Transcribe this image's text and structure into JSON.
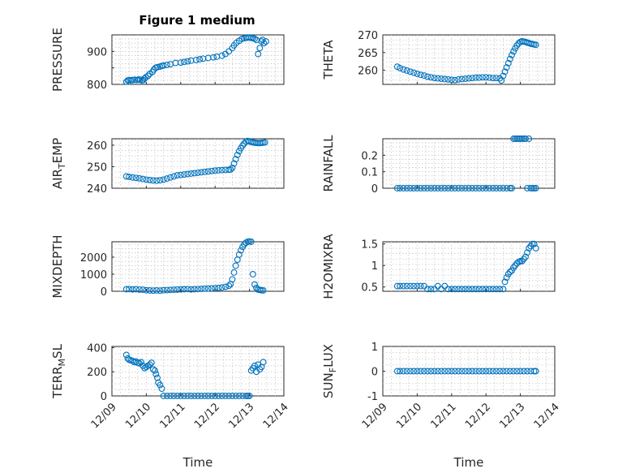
{
  "figure": {
    "title": "Figure 1 medium"
  },
  "chart_data": [
    {
      "type": "scatter",
      "ylabel": "PRESSURE",
      "xlabel": "",
      "ylim": [
        800,
        950
      ],
      "yticks": [
        800,
        850,
        900
      ],
      "ytick_labels": [
        "800",
        "",
        "900"
      ],
      "xlim": [
        0,
        5
      ],
      "xtick_labels": [
        "",
        "",
        "",
        "",
        "",
        ""
      ],
      "grid": true,
      "series": [
        {
          "x": [
            0.42,
            0.46,
            0.5,
            0.55,
            0.6,
            0.66,
            0.73,
            0.78,
            0.82,
            0.87,
            0.91,
            0.95,
            0.99,
            1.05,
            1.1,
            1.18,
            1.22,
            1.27,
            1.32,
            1.4,
            1.45,
            1.5,
            1.6,
            1.7,
            1.85,
            2.0,
            2.1,
            2.2,
            2.3,
            2.45,
            2.55,
            2.65,
            2.8,
            2.95,
            3.05,
            3.2,
            3.3,
            3.4,
            3.5,
            3.55,
            3.62,
            3.7,
            3.78,
            3.85,
            3.9,
            3.95,
            4.0,
            4.05,
            4.1,
            4.15,
            4.2,
            4.25,
            4.3,
            4.35,
            4.38,
            4.42,
            4.48
          ],
          "y": [
            808,
            812,
            813,
            812,
            813,
            814,
            813,
            815,
            814,
            812,
            813,
            818,
            822,
            826,
            832,
            838,
            845,
            850,
            852,
            854,
            856,
            857,
            859,
            861,
            865,
            866,
            868,
            870,
            872,
            874,
            876,
            878,
            880,
            882,
            884,
            887,
            892,
            900,
            910,
            918,
            926,
            932,
            938,
            940,
            941,
            942,
            942,
            941,
            940,
            938,
            935,
            892,
            910,
            930,
            935,
            925,
            930
          ]
        }
      ]
    },
    {
      "type": "scatter",
      "ylabel": "THETA",
      "xlabel": "",
      "ylim": [
        256,
        270
      ],
      "yticks": [
        260,
        265,
        270
      ],
      "ytick_labels": [
        "260",
        "265",
        "270"
      ],
      "xlim": [
        0,
        5
      ],
      "xtick_labels": [
        "",
        "",
        "",
        "",
        "",
        ""
      ],
      "grid": true,
      "series": [
        {
          "x": [
            0.42,
            0.5,
            0.6,
            0.7,
            0.8,
            0.9,
            1.0,
            1.1,
            1.2,
            1.3,
            1.4,
            1.5,
            1.6,
            1.7,
            1.8,
            1.9,
            2.0,
            2.1,
            2.2,
            2.3,
            2.4,
            2.5,
            2.6,
            2.7,
            2.8,
            2.9,
            3.0,
            3.1,
            3.2,
            3.3,
            3.4,
            3.45,
            3.5,
            3.55,
            3.6,
            3.65,
            3.7,
            3.75,
            3.8,
            3.85,
            3.9,
            3.95,
            4.0,
            4.05,
            4.1,
            4.15,
            4.2,
            4.25,
            4.3,
            4.35,
            4.4,
            4.45
          ],
          "y": [
            261,
            260.6,
            260.2,
            259.9,
            259.6,
            259.3,
            259,
            258.7,
            258.5,
            258.2,
            258,
            257.8,
            257.7,
            257.6,
            257.5,
            257.4,
            257.3,
            257.2,
            257.4,
            257.5,
            257.6,
            257.7,
            257.8,
            257.9,
            257.9,
            258,
            258,
            257.9,
            257.8,
            257.8,
            257.7,
            257.1,
            258.4,
            259.6,
            260.8,
            262,
            263.2,
            264.3,
            265.3,
            266.2,
            267,
            267.6,
            268,
            268.2,
            268.1,
            268,
            267.8,
            267.7,
            267.5,
            267.4,
            267.3,
            267.2
          ]
        }
      ]
    },
    {
      "type": "scatter",
      "ylabel": "AIR_TEMP",
      "xlabel": "",
      "ylim": [
        240,
        263
      ],
      "yticks": [
        240,
        250,
        260
      ],
      "ytick_labels": [
        "240",
        "250",
        "260"
      ],
      "xlim": [
        0,
        5
      ],
      "xtick_labels": [
        "",
        "",
        "",
        "",
        "",
        ""
      ],
      "grid": true,
      "series": [
        {
          "x": [
            0.42,
            0.5,
            0.6,
            0.7,
            0.8,
            0.9,
            1.0,
            1.1,
            1.2,
            1.3,
            1.4,
            1.5,
            1.6,
            1.7,
            1.8,
            1.9,
            2.0,
            2.1,
            2.2,
            2.3,
            2.4,
            2.5,
            2.6,
            2.7,
            2.8,
            2.9,
            3.0,
            3.1,
            3.2,
            3.3,
            3.4,
            3.45,
            3.5,
            3.55,
            3.6,
            3.65,
            3.7,
            3.75,
            3.8,
            3.85,
            3.9,
            3.95,
            4.0,
            4.05,
            4.1,
            4.15,
            4.2,
            4.25,
            4.3,
            4.35,
            4.4,
            4.45
          ],
          "y": [
            245.5,
            245.3,
            245,
            244.8,
            244.6,
            244.3,
            244,
            243.8,
            243.6,
            243.5,
            243.7,
            244,
            244.5,
            245,
            245.5,
            246,
            246.2,
            246.4,
            246.6,
            246.8,
            247,
            247.2,
            247.4,
            247.6,
            247.8,
            248,
            248.2,
            248.3,
            248.4,
            248.5,
            248.6,
            248.7,
            249.5,
            251.5,
            253.5,
            255.5,
            257.2,
            258.6,
            259.8,
            260.8,
            261.6,
            262,
            261.8,
            261.5,
            261.3,
            261.2,
            261.1,
            261,
            261,
            261.1,
            261.2,
            261.3
          ]
        }
      ]
    },
    {
      "type": "scatter",
      "ylabel": "RAINFALL",
      "xlabel": "",
      "ylim": [
        0,
        0.3
      ],
      "yticks": [
        0,
        0.1,
        0.2
      ],
      "ytick_labels": [
        "0",
        "0.1",
        "0.2"
      ],
      "xlim": [
        0,
        5
      ],
      "xtick_labels": [
        "",
        "",
        "",
        "",
        "",
        ""
      ],
      "grid": true,
      "series": [
        {
          "x": [
            0.42,
            0.5,
            0.6,
            0.7,
            0.8,
            0.9,
            1.0,
            1.1,
            1.2,
            1.3,
            1.4,
            1.5,
            1.6,
            1.7,
            1.8,
            1.9,
            2.0,
            2.1,
            2.2,
            2.3,
            2.4,
            2.5,
            2.6,
            2.7,
            2.8,
            2.9,
            3.0,
            3.1,
            3.2,
            3.3,
            3.4,
            3.5,
            3.6,
            3.7,
            3.75,
            3.8,
            3.85,
            3.9,
            3.95,
            4.0,
            4.05,
            4.1,
            4.15,
            4.2,
            4.25,
            4.3,
            4.35,
            4.4,
            4.45
          ],
          "y": [
            0,
            0,
            0,
            0,
            0,
            0,
            0,
            0,
            0,
            0,
            0,
            0,
            0,
            0,
            0,
            0,
            0,
            0,
            0,
            0,
            0,
            0,
            0,
            0,
            0,
            0,
            0,
            0,
            0,
            0,
            0,
            0,
            0,
            0,
            0,
            0.3,
            0.3,
            0.3,
            0.3,
            0.3,
            0.3,
            0.3,
            0.3,
            0,
            0.3,
            0,
            0,
            0,
            0
          ]
        }
      ]
    },
    {
      "type": "scatter",
      "ylabel": "MIXDEPTH",
      "xlabel": "",
      "ylim": [
        0,
        2900
      ],
      "yticks": [
        0,
        1000,
        2000
      ],
      "ytick_labels": [
        "0",
        "1000",
        "2000"
      ],
      "xlim": [
        0,
        5
      ],
      "xtick_labels": [
        "",
        "",
        "",
        "",
        "",
        ""
      ],
      "grid": true,
      "series": [
        {
          "x": [
            0.42,
            0.5,
            0.6,
            0.7,
            0.8,
            0.9,
            1.0,
            1.1,
            1.2,
            1.3,
            1.4,
            1.5,
            1.6,
            1.7,
            1.8,
            1.9,
            2.0,
            2.1,
            2.2,
            2.3,
            2.4,
            2.5,
            2.6,
            2.7,
            2.8,
            2.9,
            3.0,
            3.1,
            3.2,
            3.3,
            3.4,
            3.45,
            3.5,
            3.55,
            3.6,
            3.65,
            3.7,
            3.75,
            3.8,
            3.85,
            3.9,
            3.95,
            4.0,
            4.05,
            4.1,
            4.15,
            4.2,
            4.25,
            4.3,
            4.35,
            4.4
          ],
          "y": [
            120,
            130,
            110,
            120,
            100,
            90,
            60,
            50,
            40,
            50,
            40,
            60,
            70,
            80,
            90,
            100,
            110,
            120,
            130,
            110,
            120,
            130,
            140,
            150,
            160,
            170,
            180,
            200,
            220,
            260,
            320,
            420,
            700,
            1100,
            1500,
            1850,
            2150,
            2400,
            2600,
            2750,
            2850,
            2900,
            2920,
            2900,
            1000,
            400,
            200,
            100,
            80,
            60,
            50
          ]
        }
      ]
    },
    {
      "type": "scatter",
      "ylabel": "H2OMIXRA",
      "xlabel": "",
      "ylim": [
        0.4,
        1.55
      ],
      "yticks": [
        0.5,
        1,
        1.5
      ],
      "ytick_labels": [
        "0.5",
        "1",
        "1.5"
      ],
      "xlim": [
        0,
        5
      ],
      "xtick_labels": [
        "",
        "",
        "",
        "",
        "",
        ""
      ],
      "grid": true,
      "series": [
        {
          "x": [
            0.42,
            0.5,
            0.6,
            0.7,
            0.8,
            0.9,
            1.0,
            1.1,
            1.2,
            1.3,
            1.4,
            1.5,
            1.6,
            1.7,
            1.8,
            1.9,
            2.0,
            2.1,
            2.2,
            2.3,
            2.4,
            2.5,
            2.6,
            2.7,
            2.8,
            2.9,
            3.0,
            3.1,
            3.2,
            3.3,
            3.4,
            3.5,
            3.55,
            3.6,
            3.65,
            3.7,
            3.75,
            3.8,
            3.85,
            3.9,
            3.95,
            4.0,
            4.05,
            4.1,
            4.15,
            4.2,
            4.25,
            4.3,
            4.35,
            4.4,
            4.45
          ],
          "y": [
            0.52,
            0.52,
            0.52,
            0.52,
            0.52,
            0.52,
            0.52,
            0.52,
            0.52,
            0.45,
            0.45,
            0.45,
            0.52,
            0.45,
            0.52,
            0.45,
            0.45,
            0.45,
            0.45,
            0.45,
            0.45,
            0.45,
            0.45,
            0.45,
            0.45,
            0.45,
            0.45,
            0.45,
            0.45,
            0.45,
            0.45,
            0.45,
            0.62,
            0.72,
            0.8,
            0.85,
            0.88,
            0.95,
            1.0,
            1.05,
            1.08,
            1.1,
            1.1,
            1.15,
            1.2,
            1.3,
            1.4,
            1.45,
            1.5,
            1.5,
            1.4
          ]
        }
      ]
    },
    {
      "type": "scatter",
      "ylabel": "TERR_MSL",
      "xlabel": "Time",
      "ylim": [
        0,
        410
      ],
      "yticks": [
        0,
        200,
        400
      ],
      "ytick_labels": [
        "0",
        "200",
        "400"
      ],
      "xlim": [
        0,
        5
      ],
      "xtick_labels": [
        "12/09",
        "12/10",
        "12/11",
        "12/12",
        "12/13",
        "12/14"
      ],
      "grid": true,
      "series": [
        {
          "x": [
            0.42,
            0.46,
            0.5,
            0.55,
            0.6,
            0.65,
            0.7,
            0.75,
            0.8,
            0.85,
            0.9,
            0.95,
            1.0,
            1.05,
            1.1,
            1.15,
            1.2,
            1.25,
            1.28,
            1.32,
            1.35,
            1.4,
            1.45,
            1.5,
            1.6,
            1.7,
            1.8,
            1.9,
            2.0,
            2.1,
            2.2,
            2.3,
            2.4,
            2.5,
            2.6,
            2.7,
            2.8,
            2.9,
            3.0,
            3.1,
            3.2,
            3.3,
            3.4,
            3.5,
            3.6,
            3.7,
            3.8,
            3.9,
            3.95,
            4.0,
            4.05,
            4.1,
            4.15,
            4.2,
            4.25,
            4.3,
            4.35,
            4.4
          ],
          "y": [
            340,
            310,
            300,
            295,
            290,
            280,
            285,
            275,
            270,
            280,
            250,
            230,
            240,
            250,
            260,
            275,
            220,
            210,
            180,
            150,
            110,
            90,
            60,
            0,
            0,
            0,
            0,
            0,
            0,
            0,
            0,
            0,
            0,
            0,
            0,
            0,
            0,
            0,
            0,
            0,
            0,
            0,
            0,
            0,
            0,
            0,
            0,
            0,
            0,
            0,
            210,
            230,
            250,
            200,
            260,
            220,
            240,
            280
          ]
        }
      ]
    },
    {
      "type": "scatter",
      "ylabel": "SUN_FLUX",
      "xlabel": "Time",
      "ylim": [
        -1,
        1
      ],
      "yticks": [
        -1,
        0,
        1
      ],
      "ytick_labels": [
        "-1",
        "0",
        "1"
      ],
      "xlim": [
        0,
        5
      ],
      "xtick_labels": [
        "12/09",
        "12/10",
        "12/11",
        "12/12",
        "12/13",
        "12/14"
      ],
      "grid": true,
      "series": [
        {
          "x": [
            0.42,
            0.5,
            0.6,
            0.7,
            0.8,
            0.9,
            1.0,
            1.1,
            1.2,
            1.3,
            1.4,
            1.5,
            1.6,
            1.7,
            1.8,
            1.9,
            2.0,
            2.1,
            2.2,
            2.3,
            2.4,
            2.5,
            2.6,
            2.7,
            2.8,
            2.9,
            3.0,
            3.1,
            3.2,
            3.3,
            3.4,
            3.5,
            3.6,
            3.7,
            3.8,
            3.9,
            4.0,
            4.1,
            4.2,
            4.3,
            4.4,
            4.45
          ],
          "y": [
            0,
            0,
            0,
            0,
            0,
            0,
            0,
            0,
            0,
            0,
            0,
            0,
            0,
            0,
            0,
            0,
            0,
            0,
            0,
            0,
            0,
            0,
            0,
            0,
            0,
            0,
            0,
            0,
            0,
            0,
            0,
            0,
            0,
            0,
            0,
            0,
            0,
            0,
            0,
            0,
            0,
            0
          ]
        }
      ]
    }
  ]
}
